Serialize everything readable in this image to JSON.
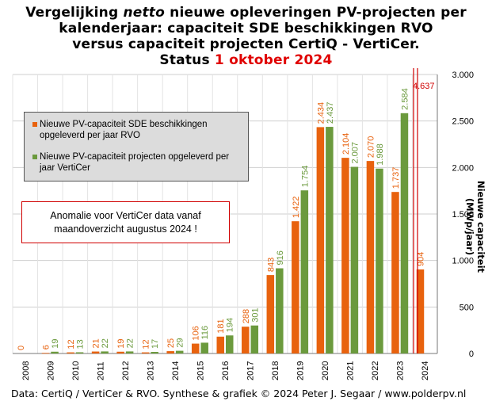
{
  "title": {
    "line1_pre": "Vergelijking ",
    "line1_em": "netto",
    "line1_post": " nieuwe opleveringen PV-projecten per",
    "line2": "kalenderjaar: capaciteit SDE beschikkingen  RVO",
    "line3": "versus capaciteit  projecten CertiQ - VertiCer.",
    "line4_pre": "Status ",
    "line4_date": "1 oktober 2024"
  },
  "note": {
    "line1": "Anomalie  voor VertiCer data vanaf",
    "line2": "maandoverzicht augustus 2024 !"
  },
  "footer": "Data: CertiQ / VertiCer & RVO. Synthese & grafiek © 2024 Peter J. Segaar / www.polderpv.nl",
  "chart_data": {
    "type": "bar",
    "categories": [
      "2008",
      "2009",
      "2010",
      "2011",
      "2012",
      "2013",
      "2014",
      "2015",
      "2016",
      "2017",
      "2018",
      "2019",
      "2020",
      "2021",
      "2022",
      "2023",
      "2024"
    ],
    "series": [
      {
        "name": "Nieuwe PV-capaciteit SDE beschikkingen opgeleverd per jaar RVO",
        "color": "#e8620e",
        "values": [
          0,
          6,
          12,
          21,
          19,
          12,
          25,
          106,
          181,
          288,
          843,
          1422,
          2434,
          2104,
          2070,
          1737,
          904
        ],
        "labels": [
          "0",
          "6",
          "12",
          "21",
          "19",
          "12",
          "25",
          "106",
          "181",
          "288",
          "843",
          "1.422",
          "2.434",
          "2.104",
          "2.070",
          "1.737",
          "904"
        ]
      },
      {
        "name": "Nieuwe PV-capaciteit projecten opgeleverd per jaar VertiCer",
        "color": "#6b9a3d",
        "values": [
          null,
          19,
          13,
          22,
          22,
          17,
          29,
          116,
          194,
          301,
          916,
          1754,
          2437,
          2007,
          1988,
          2584,
          null
        ],
        "labels": [
          "",
          "19",
          "13",
          "22",
          "22",
          "17",
          "29",
          "116",
          "194",
          "301",
          "916",
          "1.754",
          "2.437",
          "2.007",
          "1.988",
          "2.584",
          ""
        ]
      }
    ],
    "overflow_label": "4.637",
    "ylabel": "Nieuwe capaciteit (MWp/jaar)",
    "yticks": [
      0,
      500,
      1000,
      1500,
      2000,
      2500,
      3000
    ],
    "ytick_labels": [
      "0",
      "500",
      "1.000",
      "1.500",
      "2.000",
      "2.500",
      "3.000"
    ],
    "ylim": [
      0,
      3000
    ],
    "grid": true,
    "legend_position": "top-left"
  }
}
